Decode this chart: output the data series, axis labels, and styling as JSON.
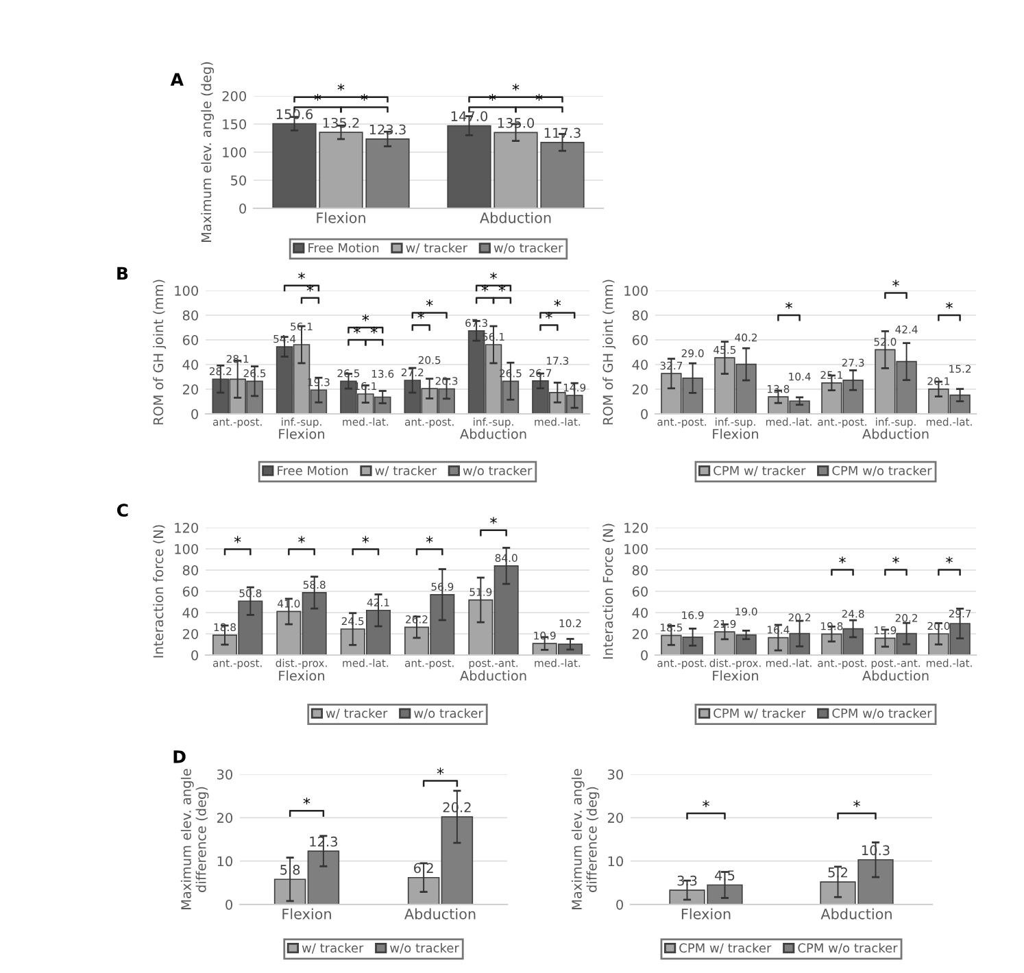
{
  "chart_data": [
    {
      "type": "bar",
      "categories": [
        "Flexion",
        "Abduction"
      ],
      "ylabel": "Maximum elev. angle (deg)",
      "ylim": [
        0,
        200
      ],
      "yticks": [
        0,
        50,
        100,
        150,
        200
      ],
      "grid": "y",
      "legend": "bottom",
      "series": [
        {
          "name": "Free Motion",
          "color": "#595959",
          "values": [
            150.6,
            147.0
          ],
          "value_labels": [
            "150.6",
            "147.0"
          ],
          "errors": [
            12,
            17
          ]
        },
        {
          "name": "w/ tracker",
          "color": "#a6a6a6",
          "values": [
            135.2,
            135.0
          ],
          "value_labels": [
            "135.2",
            "135.0"
          ],
          "errors": [
            12,
            15
          ]
        },
        {
          "name": "w/o tracker",
          "color": "#7f7f7f",
          "values": [
            123.3,
            117.3
          ],
          "value_labels": [
            "123.3",
            "117.3"
          ],
          "errors": [
            13,
            15
          ]
        }
      ],
      "annotations": [
        "A",
        "*",
        "*",
        "*",
        "*",
        "*",
        "*"
      ]
    },
    {
      "type": "bar",
      "categories": [
        "ant.-post.",
        "inf.-sup.",
        "med.-lat.",
        "ant.-post.",
        "inf.-sup.",
        "med.-lat."
      ],
      "ylabel": "ROM of GH joint (mm)",
      "ylim": [
        0,
        100
      ],
      "yticks": [
        0,
        20,
        40,
        60,
        80,
        100
      ],
      "grid": "y",
      "legend": "bottom",
      "series": [
        {
          "name": "Free Motion",
          "color": "#595959",
          "values": [
            28.2,
            54.4,
            26.5,
            27.2,
            67.3,
            26.7
          ],
          "value_labels": [
            "28.2",
            "54.4",
            "26.5",
            "27.2",
            "67.3",
            "26.7"
          ],
          "errors": [
            11,
            8,
            6,
            10,
            8,
            6
          ]
        },
        {
          "name": "w/ tracker",
          "color": "#a6a6a6",
          "values": [
            28.1,
            56.1,
            16.1,
            20.5,
            56.1,
            17.3
          ],
          "value_labels": [
            "28.1",
            "56.1",
            "16.1",
            "20.5",
            "56.1",
            "17.3"
          ],
          "errors": [
            15,
            15,
            7,
            8,
            15,
            8
          ]
        },
        {
          "name": "w/o tracker",
          "color": "#7f7f7f",
          "values": [
            26.5,
            19.3,
            13.6,
            20.3,
            26.5,
            14.9
          ],
          "value_labels": [
            "26.5",
            "19.3",
            "13.6",
            "20.3",
            "26.5",
            "14.9"
          ],
          "errors": [
            12,
            10,
            5,
            8,
            15,
            10
          ]
        }
      ],
      "annotations": [
        "B",
        "Flexion",
        "Abduction",
        "*",
        "*",
        "*",
        "*",
        "*",
        "*",
        "*",
        "*",
        "*",
        "*",
        "*",
        "*"
      ]
    },
    {
      "type": "bar",
      "categories": [
        "ant.-post.",
        "inf.-sup.",
        "med.-lat.",
        "ant.-post.",
        "inf.-sup.",
        "med.-lat."
      ],
      "ylabel": "ROM of GH joint (mm)",
      "ylim": [
        0,
        100
      ],
      "yticks": [
        0,
        20,
        40,
        60,
        80,
        100
      ],
      "grid": "y",
      "legend": "bottom",
      "series": [
        {
          "name": "CPM w/ tracker",
          "color": "#a6a6a6",
          "values": [
            32.7,
            45.5,
            13.8,
            25.1,
            52.0,
            20.1
          ],
          "value_labels": [
            "32.7",
            "45.5",
            "13.8",
            "25.1",
            "52.0",
            "20.1"
          ],
          "errors": [
            12,
            13,
            5,
            6,
            15,
            6
          ]
        },
        {
          "name": "CPM w/o tracker",
          "color": "#7f7f7f",
          "values": [
            29.0,
            40.2,
            10.4,
            27.3,
            42.4,
            15.2
          ],
          "value_labels": [
            "29.0",
            "40.2",
            "10.4",
            "27.3",
            "42.4",
            "15.2"
          ],
          "errors": [
            12,
            13,
            3,
            8,
            15,
            5
          ]
        }
      ],
      "annotations": [
        "Flexion",
        "Abduction",
        "*",
        "*",
        "*"
      ]
    },
    {
      "type": "bar",
      "categories": [
        "ant.-post.",
        "dist.-prox.",
        "med.-lat.",
        "ant.-post.",
        "post.-ant.",
        "med.-lat."
      ],
      "ylabel": "Interaction force (N)",
      "ylim": [
        0,
        120
      ],
      "yticks": [
        0,
        20,
        40,
        60,
        80,
        100,
        120
      ],
      "grid": "y",
      "legend": "bottom",
      "series": [
        {
          "name": "w/ tracker",
          "color": "#a6a6a6",
          "values": [
            18.8,
            41.0,
            24.5,
            26.2,
            51.9,
            10.9
          ],
          "value_labels": [
            "18.8",
            "41.0",
            "24.5",
            "26.2",
            "51.9",
            "10.9"
          ],
          "errors": [
            9,
            12,
            15,
            10,
            21,
            6
          ]
        },
        {
          "name": "w/o tracker",
          "color": "#6f6f6f",
          "values": [
            50.8,
            58.8,
            42.1,
            56.9,
            84.0,
            10.2
          ],
          "value_labels": [
            "50.8",
            "58.8",
            "42.1",
            "56.9",
            "84.0",
            "10.2"
          ],
          "errors": [
            13,
            15,
            15,
            24,
            17,
            5
          ]
        }
      ],
      "annotations": [
        "C",
        "Flexion",
        "Abduction",
        "*",
        "*",
        "*",
        "*",
        "*"
      ]
    },
    {
      "type": "bar",
      "categories": [
        "ant.-post.",
        "dist.-prox.",
        "med.-lat.",
        "ant.-post.",
        "post.-ant.",
        "med.-lat."
      ],
      "ylabel": "Interaction Force (N)",
      "ylim": [
        0,
        120
      ],
      "yticks": [
        0,
        20,
        40,
        60,
        80,
        100,
        120
      ],
      "grid": "y",
      "legend": "bottom",
      "series": [
        {
          "name": "CPM w/ tracker",
          "color": "#a6a6a6",
          "values": [
            18.5,
            21.9,
            16.4,
            19.8,
            15.9,
            20.0
          ],
          "value_labels": [
            "18.5",
            "21.9",
            "16.4",
            "19.8",
            "15.9",
            "20.0"
          ],
          "errors": [
            9,
            7,
            12,
            7,
            8,
            10
          ]
        },
        {
          "name": "CPM w/o tracker",
          "color": "#6f6f6f",
          "values": [
            16.9,
            19.0,
            20.2,
            24.8,
            20.2,
            29.7
          ],
          "value_labels": [
            "16.9",
            "19.0",
            "20.2",
            "24.8",
            "20.2",
            "29.7"
          ],
          "errors": [
            8,
            4,
            12,
            8,
            10,
            14
          ]
        }
      ],
      "annotations": [
        "Flexion",
        "Abduction",
        "*",
        "*",
        "*"
      ]
    },
    {
      "type": "bar",
      "categories": [
        "Flexion",
        "Abduction"
      ],
      "ylabel": "Maximum elev. angle\ndifference (deg)",
      "ylim": [
        0,
        30
      ],
      "yticks": [
        0,
        10,
        20,
        30
      ],
      "grid": "y",
      "legend": "bottom",
      "series": [
        {
          "name": "w/ tracker",
          "color": "#a6a6a6",
          "values": [
            5.8,
            6.2
          ],
          "value_labels": [
            "5.8",
            "6.2"
          ],
          "errors": [
            5,
            3.3
          ]
        },
        {
          "name": "w/o tracker",
          "color": "#7f7f7f",
          "values": [
            12.3,
            20.2
          ],
          "value_labels": [
            "12.3",
            "20.2"
          ],
          "errors": [
            3.5,
            6
          ]
        }
      ],
      "annotations": [
        "D",
        "*",
        "*"
      ]
    },
    {
      "type": "bar",
      "categories": [
        "Flexion",
        "Abduction"
      ],
      "ylabel": "Maximum elev. angle\ndifference (deg)",
      "ylim": [
        0,
        30
      ],
      "yticks": [
        0,
        10,
        20,
        30
      ],
      "grid": "y",
      "legend": "bottom",
      "series": [
        {
          "name": "CPM w/ tracker",
          "color": "#a6a6a6",
          "values": [
            3.3,
            5.2
          ],
          "value_labels": [
            "3.3",
            "5.2"
          ],
          "errors": [
            2.2,
            3.5
          ]
        },
        {
          "name": "CPM w/o tracker",
          "color": "#7f7f7f",
          "values": [
            4.5,
            10.3
          ],
          "value_labels": [
            "4.5",
            "10.3"
          ],
          "errors": [
            3,
            4
          ]
        }
      ],
      "annotations": [
        "*",
        "*"
      ]
    }
  ]
}
